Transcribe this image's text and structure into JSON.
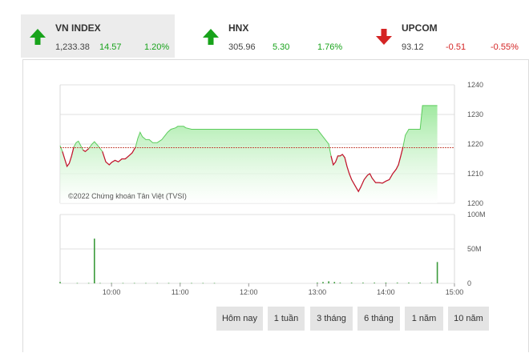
{
  "indices": [
    {
      "name": "VN INDEX",
      "value": "1,233.38",
      "change": "14.57",
      "percent": "1.20%",
      "direction": "up",
      "icon": "arrow-up-icon"
    },
    {
      "name": "HNX",
      "value": "305.96",
      "change": "5.30",
      "percent": "1.76%",
      "direction": "up",
      "icon": "arrow-up-icon"
    },
    {
      "name": "UPCOM",
      "value": "93.12",
      "change": "-0.51",
      "percent": "-0.55%",
      "direction": "down",
      "icon": "arrow-down-icon"
    }
  ],
  "colors": {
    "up": "#18a31b",
    "down": "#d42424",
    "area_fill": "#9be89b",
    "area_line": "#5ccc5c",
    "volume": "#3a9a3a",
    "reference": "#c0392b"
  },
  "chart_data": {
    "type": "area",
    "annotation": "©2022 Chứng khoán Tân Việt (TVSI)",
    "reference_value": 1218.8,
    "x_ticks": [
      "10:00",
      "11:00",
      "12:00",
      "13:00",
      "14:00",
      "15:00"
    ],
    "price_axis": {
      "ticks": [
        "1200",
        "1210",
        "1220",
        "1230",
        "1240"
      ],
      "range": [
        1200,
        1240
      ]
    },
    "volume_axis": {
      "ticks": [
        "0",
        "50M",
        "100M"
      ],
      "range": [
        0,
        100
      ]
    },
    "time_range": [
      "09:15",
      "15:00"
    ],
    "price": [
      [
        "09:15",
        1219.5
      ],
      [
        "09:17",
        1217.5
      ],
      [
        "09:19",
        1215
      ],
      [
        "09:21",
        1212.5
      ],
      [
        "09:23",
        1213.5
      ],
      [
        "09:25",
        1216
      ],
      [
        "09:27",
        1219
      ],
      [
        "09:29",
        1220.5
      ],
      [
        "09:31",
        1221
      ],
      [
        "09:33",
        1219.5
      ],
      [
        "09:35",
        1218
      ],
      [
        "09:37",
        1217.5
      ],
      [
        "09:40",
        1218.5
      ],
      [
        "09:43",
        1220
      ],
      [
        "09:45",
        1220.8
      ],
      [
        "09:48",
        1219.5
      ],
      [
        "09:52",
        1217.5
      ],
      [
        "09:55",
        1214
      ],
      [
        "09:58",
        1213
      ],
      [
        "10:00",
        1213.8
      ],
      [
        "10:03",
        1214.5
      ],
      [
        "10:06",
        1214
      ],
      [
        "10:09",
        1215
      ],
      [
        "10:12",
        1215
      ],
      [
        "10:15",
        1216
      ],
      [
        "10:18",
        1217
      ],
      [
        "10:21",
        1219
      ],
      [
        "10:23",
        1222
      ],
      [
        "10:25",
        1224
      ],
      [
        "10:27",
        1222.5
      ],
      [
        "10:30",
        1221.5
      ],
      [
        "10:33",
        1221.5
      ],
      [
        "10:36",
        1220.5
      ],
      [
        "10:40",
        1220.5
      ],
      [
        "10:44",
        1221.5
      ],
      [
        "10:47",
        1223
      ],
      [
        "10:49",
        1224
      ],
      [
        "10:52",
        1225
      ],
      [
        "10:56",
        1225.5
      ],
      [
        "10:58",
        1226
      ],
      [
        "11:00",
        1226
      ],
      [
        "11:03",
        1226
      ],
      [
        "11:05",
        1225.5
      ],
      [
        "11:10",
        1225
      ],
      [
        "11:15",
        1225
      ],
      [
        "11:20",
        1225
      ],
      [
        "11:25",
        1225
      ],
      [
        "11:30",
        1225
      ],
      [
        "13:00",
        1225
      ],
      [
        "13:04",
        1223
      ],
      [
        "13:08",
        1221
      ],
      [
        "13:10",
        1220
      ],
      [
        "13:12",
        1216
      ],
      [
        "13:14",
        1213
      ],
      [
        "13:16",
        1214
      ],
      [
        "13:18",
        1216
      ],
      [
        "13:20",
        1216
      ],
      [
        "13:22",
        1216.5
      ],
      [
        "13:24",
        1215.5
      ],
      [
        "13:26",
        1212.5
      ],
      [
        "13:28",
        1210
      ],
      [
        "13:30",
        1208
      ],
      [
        "13:33",
        1206
      ],
      [
        "13:36",
        1204
      ],
      [
        "13:38",
        1205.5
      ],
      [
        "13:41",
        1208
      ],
      [
        "13:44",
        1209.5
      ],
      [
        "13:46",
        1210
      ],
      [
        "13:48",
        1208.5
      ],
      [
        "13:51",
        1207
      ],
      [
        "13:54",
        1207
      ],
      [
        "13:57",
        1206.8
      ],
      [
        "14:00",
        1207.5
      ],
      [
        "14:03",
        1208
      ],
      [
        "14:06",
        1210
      ],
      [
        "14:09",
        1211.5
      ],
      [
        "14:11",
        1213
      ],
      [
        "14:13",
        1216
      ],
      [
        "14:15",
        1219
      ],
      [
        "14:17",
        1223
      ],
      [
        "14:20",
        1225
      ],
      [
        "14:25",
        1225
      ],
      [
        "14:30",
        1225
      ],
      [
        "14:32",
        1233
      ],
      [
        "14:45",
        1233
      ]
    ],
    "volume": [
      [
        "09:15",
        2
      ],
      [
        "09:30",
        0.5
      ],
      [
        "09:40",
        0.5
      ],
      [
        "09:45",
        65
      ],
      [
        "09:50",
        0.5
      ],
      [
        "10:00",
        0.5
      ],
      [
        "10:10",
        0.5
      ],
      [
        "10:20",
        0.5
      ],
      [
        "10:30",
        0.5
      ],
      [
        "10:40",
        0.5
      ],
      [
        "10:50",
        0.5
      ],
      [
        "11:00",
        0.5
      ],
      [
        "11:10",
        0.5
      ],
      [
        "11:20",
        0.5
      ],
      [
        "11:30",
        0.5
      ],
      [
        "13:00",
        1
      ],
      [
        "13:05",
        2
      ],
      [
        "13:10",
        3
      ],
      [
        "13:15",
        2
      ],
      [
        "13:20",
        1
      ],
      [
        "13:30",
        1
      ],
      [
        "13:40",
        1
      ],
      [
        "13:50",
        1
      ],
      [
        "14:00",
        1
      ],
      [
        "14:10",
        1
      ],
      [
        "14:20",
        1
      ],
      [
        "14:30",
        1
      ],
      [
        "14:40",
        1
      ],
      [
        "14:45",
        31
      ]
    ]
  },
  "range_buttons": [
    "Hôm nay",
    "1 tuần",
    "3 tháng",
    "6 tháng",
    "1 năm",
    "10 năm"
  ]
}
